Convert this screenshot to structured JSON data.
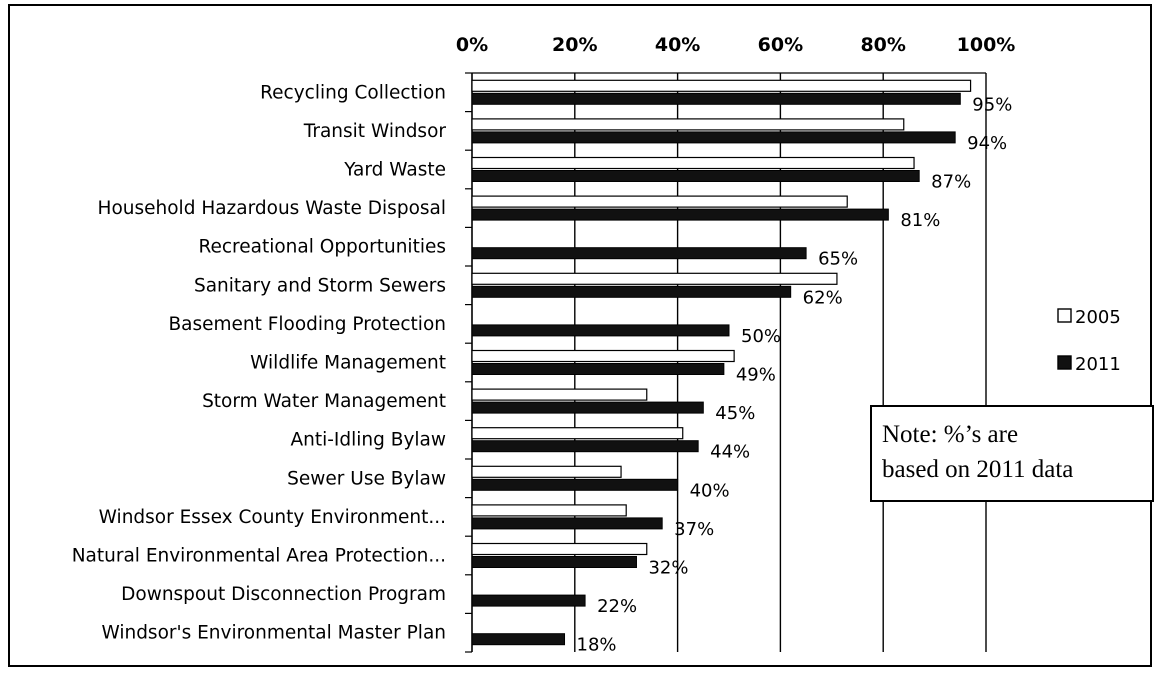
{
  "chart_data": {
    "type": "bar",
    "orientation": "horizontal",
    "categories": [
      "Recycling Collection",
      "Transit Windsor",
      "Yard Waste",
      "Household Hazardous Waste Disposal",
      "Recreational Opportunities",
      "Sanitary and Storm Sewers",
      "Basement Flooding Protection",
      "Wildlife Management",
      "Storm Water Management",
      "Anti-Idling Bylaw",
      "Sewer Use Bylaw",
      "Windsor Essex County Environment...",
      "Natural Environmental Area Protection...",
      "Downspout Disconnection Program",
      "Windsor's Environmental Master Plan"
    ],
    "series": [
      {
        "name": "2005",
        "color": "#ffffff",
        "values": [
          97,
          84,
          86,
          73,
          null,
          71,
          null,
          51,
          34,
          41,
          29,
          30,
          34,
          null,
          null
        ]
      },
      {
        "name": "2011",
        "color": "#111111",
        "values": [
          95,
          94,
          87,
          81,
          65,
          62,
          50,
          49,
          45,
          44,
          40,
          37,
          32,
          22,
          18
        ]
      }
    ],
    "data_labels": [
      "95%",
      "94%",
      "87%",
      "81%",
      "65%",
      "62%",
      "50%",
      "49%",
      "45%",
      "44%",
      "40%",
      "37%",
      "32%",
      "22%",
      "18%"
    ],
    "x_ticks": [
      "0%",
      "20%",
      "40%",
      "60%",
      "80%",
      "100%"
    ],
    "xlim": [
      0,
      100
    ],
    "xaxis_position": "top",
    "grid": true,
    "legend": {
      "placement": "right",
      "entries": [
        "2005",
        "2011"
      ]
    },
    "note": {
      "line1": "Note: %’s are",
      "line2": "based on 2011 data"
    },
    "title": "",
    "xlabel": "",
    "ylabel": ""
  }
}
